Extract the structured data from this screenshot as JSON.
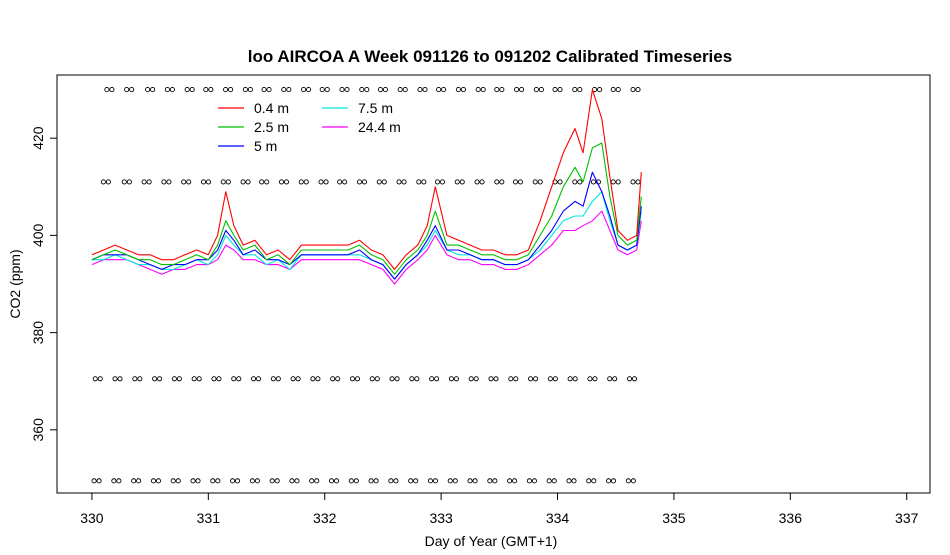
{
  "chart_data": {
    "type": "line",
    "title": "loo AIRCOA A  Week 091126 to 091202  Calibrated Timeseries",
    "xlabel": "Day of Year (GMT+1)",
    "ylabel": "CO2 (ppm)",
    "xlim": [
      329.7,
      337.2
    ],
    "ylim": [
      347,
      433
    ],
    "xticks": [
      330,
      331,
      332,
      333,
      334,
      335,
      336,
      337
    ],
    "yticks": [
      360,
      380,
      400,
      420
    ],
    "legend_position": "top-left",
    "series": [
      {
        "name": "0.4 m",
        "color": "#ff0000",
        "x": [
          330.0,
          330.1,
          330.2,
          330.3,
          330.4,
          330.5,
          330.6,
          330.7,
          330.8,
          330.9,
          331.0,
          331.08,
          331.15,
          331.22,
          331.3,
          331.4,
          331.5,
          331.6,
          331.7,
          331.8,
          331.9,
          332.0,
          332.1,
          332.2,
          332.3,
          332.4,
          332.5,
          332.6,
          332.7,
          332.8,
          332.88,
          332.95,
          333.05,
          333.15,
          333.25,
          333.35,
          333.45,
          333.55,
          333.65,
          333.75,
          333.85,
          333.95,
          334.05,
          334.15,
          334.22,
          334.3,
          334.38,
          334.45,
          334.52,
          334.6,
          334.68,
          334.72
        ],
        "values": [
          396,
          397,
          398,
          397,
          396,
          396,
          395,
          395,
          396,
          397,
          396,
          400,
          409,
          402,
          398,
          399,
          396,
          397,
          395,
          398,
          398,
          398,
          398,
          398,
          399,
          397,
          396,
          393,
          396,
          398,
          402,
          410,
          400,
          399,
          398,
          397,
          397,
          396,
          396,
          397,
          403,
          410,
          417,
          422,
          417,
          430,
          424,
          412,
          401,
          399,
          400,
          413
        ]
      },
      {
        "name": "2.5 m",
        "color": "#00c000",
        "x": [
          330.0,
          330.1,
          330.2,
          330.3,
          330.4,
          330.5,
          330.6,
          330.7,
          330.8,
          330.9,
          331.0,
          331.08,
          331.15,
          331.22,
          331.3,
          331.4,
          331.5,
          331.6,
          331.7,
          331.8,
          331.9,
          332.0,
          332.1,
          332.2,
          332.3,
          332.4,
          332.5,
          332.6,
          332.7,
          332.8,
          332.88,
          332.95,
          333.05,
          333.15,
          333.25,
          333.35,
          333.45,
          333.55,
          333.65,
          333.75,
          333.85,
          333.95,
          334.05,
          334.15,
          334.22,
          334.3,
          334.38,
          334.45,
          334.52,
          334.6,
          334.68,
          334.72
        ],
        "values": [
          395,
          396,
          397,
          396,
          395,
          395,
          394,
          394,
          395,
          396,
          395,
          398,
          403,
          400,
          397,
          398,
          395,
          396,
          394,
          397,
          397,
          397,
          397,
          397,
          398,
          396,
          395,
          392,
          395,
          397,
          400,
          405,
          398,
          398,
          397,
          396,
          396,
          395,
          395,
          396,
          400,
          404,
          410,
          414,
          411,
          418,
          419,
          408,
          400,
          398,
          399,
          408
        ]
      },
      {
        "name": "5 m",
        "color": "#0000ff",
        "x": [
          330.0,
          330.1,
          330.2,
          330.3,
          330.4,
          330.5,
          330.6,
          330.7,
          330.8,
          330.9,
          331.0,
          331.08,
          331.15,
          331.22,
          331.3,
          331.4,
          331.5,
          331.6,
          331.7,
          331.8,
          331.9,
          332.0,
          332.1,
          332.2,
          332.3,
          332.4,
          332.5,
          332.6,
          332.7,
          332.8,
          332.88,
          332.95,
          333.05,
          333.15,
          333.25,
          333.35,
          333.45,
          333.55,
          333.65,
          333.75,
          333.85,
          333.95,
          334.05,
          334.15,
          334.22,
          334.3,
          334.38,
          334.45,
          334.52,
          334.6,
          334.68,
          334.72
        ],
        "values": [
          395,
          396,
          396,
          396,
          395,
          394,
          393,
          394,
          394,
          395,
          395,
          397,
          401,
          399,
          396,
          397,
          395,
          395,
          394,
          396,
          396,
          396,
          396,
          396,
          397,
          395,
          394,
          391,
          394,
          396,
          399,
          402,
          397,
          397,
          396,
          395,
          395,
          394,
          394,
          395,
          398,
          401,
          405,
          407,
          406,
          413,
          409,
          404,
          398,
          397,
          398,
          406
        ]
      },
      {
        "name": "7.5 m",
        "color": "#00e5e5",
        "x": [
          330.0,
          330.1,
          330.2,
          330.3,
          330.4,
          330.5,
          330.6,
          330.7,
          330.8,
          330.9,
          331.0,
          331.08,
          331.15,
          331.22,
          331.3,
          331.4,
          331.5,
          331.6,
          331.7,
          331.8,
          331.9,
          332.0,
          332.1,
          332.2,
          332.3,
          332.4,
          332.5,
          332.6,
          332.7,
          332.8,
          332.88,
          332.95,
          333.05,
          333.15,
          333.25,
          333.35,
          333.45,
          333.55,
          333.65,
          333.75,
          333.85,
          333.95,
          334.05,
          334.15,
          334.22,
          334.3,
          334.38,
          334.45,
          334.52,
          334.6,
          334.68,
          334.72
        ],
        "values": [
          395,
          395,
          396,
          395,
          394,
          394,
          393,
          393,
          394,
          395,
          394,
          396,
          400,
          398,
          396,
          396,
          394,
          395,
          393,
          396,
          396,
          396,
          396,
          396,
          396,
          395,
          394,
          391,
          394,
          396,
          398,
          401,
          397,
          396,
          396,
          395,
          395,
          394,
          394,
          395,
          397,
          400,
          403,
          404,
          404,
          407,
          409,
          403,
          398,
          397,
          398,
          405
        ]
      },
      {
        "name": "24.4 m",
        "color": "#ff00ff",
        "x": [
          330.0,
          330.1,
          330.2,
          330.3,
          330.4,
          330.5,
          330.6,
          330.7,
          330.8,
          330.9,
          331.0,
          331.08,
          331.15,
          331.22,
          331.3,
          331.4,
          331.5,
          331.6,
          331.7,
          331.8,
          331.9,
          332.0,
          332.1,
          332.2,
          332.3,
          332.4,
          332.5,
          332.6,
          332.7,
          332.8,
          332.88,
          332.95,
          333.05,
          333.15,
          333.25,
          333.35,
          333.45,
          333.55,
          333.65,
          333.75,
          333.85,
          333.95,
          334.05,
          334.15,
          334.22,
          334.3,
          334.38,
          334.45,
          334.52,
          334.6,
          334.68,
          334.72
        ],
        "values": [
          394,
          395,
          395,
          395,
          394,
          393,
          392,
          393,
          393,
          394,
          394,
          395,
          398,
          397,
          395,
          395,
          394,
          394,
          393,
          395,
          395,
          395,
          395,
          395,
          395,
          394,
          393,
          390,
          393,
          395,
          397,
          400,
          396,
          395,
          395,
          394,
          394,
          393,
          393,
          394,
          396,
          398,
          401,
          401,
          402,
          403,
          405,
          401,
          397,
          396,
          397,
          403
        ]
      }
    ],
    "markers": {
      "symbol": "circle",
      "rows": [
        {
          "y": 430,
          "x": [
            330.15,
            330.32,
            330.5,
            330.67,
            330.84,
            331.0,
            331.17,
            331.34,
            331.5,
            331.67,
            331.84,
            332.0,
            332.17,
            332.34,
            332.5,
            332.67,
            332.84,
            333.0,
            333.17,
            333.34,
            333.5,
            333.67,
            333.84,
            334.0,
            334.17,
            334.34,
            334.5,
            334.67
          ]
        },
        {
          "y": 411,
          "x": [
            330.12,
            330.3,
            330.47,
            330.64,
            330.81,
            330.98,
            331.15,
            331.32,
            331.48,
            331.65,
            331.82,
            331.99,
            332.15,
            332.32,
            332.49,
            332.66,
            332.83,
            332.99,
            333.16,
            333.33,
            333.5,
            333.66,
            333.83,
            334.0,
            334.17,
            334.33,
            334.5,
            334.67
          ]
        },
        {
          "y": 370.5,
          "x": [
            330.05,
            330.22,
            330.39,
            330.56,
            330.73,
            330.9,
            331.07,
            331.24,
            331.41,
            331.58,
            331.75,
            331.92,
            332.09,
            332.26,
            332.43,
            332.6,
            332.77,
            332.94,
            333.11,
            333.28,
            333.45,
            333.62,
            333.79,
            333.96,
            334.13,
            334.3,
            334.47,
            334.64
          ]
        },
        {
          "y": 349.5,
          "x": [
            330.04,
            330.21,
            330.38,
            330.55,
            330.72,
            330.89,
            331.06,
            331.23,
            331.4,
            331.57,
            331.74,
            331.91,
            332.08,
            332.25,
            332.42,
            332.59,
            332.76,
            332.93,
            333.1,
            333.27,
            333.44,
            333.61,
            333.78,
            333.95,
            334.12,
            334.29,
            334.46,
            334.63
          ]
        }
      ]
    }
  }
}
